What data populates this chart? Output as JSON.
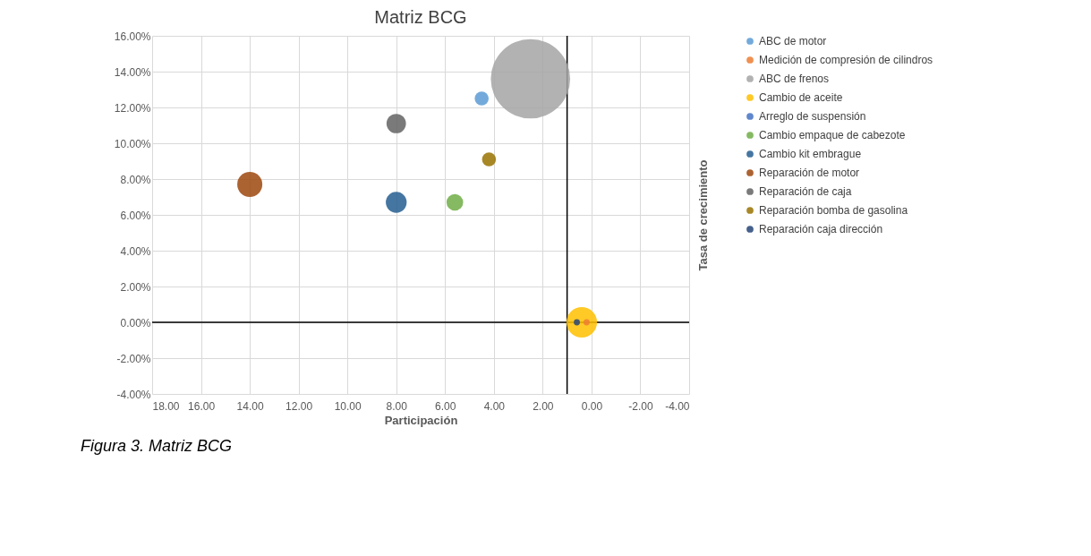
{
  "chart_data": {
    "type": "bubble",
    "title": "Matriz BCG",
    "xlabel": "Participación",
    "ylabel": "Tasa de crecimiento",
    "xlim": [
      18,
      -4
    ],
    "ylim": [
      -4,
      16
    ],
    "xticks": [
      {
        "value": 18,
        "label": "18.00"
      },
      {
        "value": 16,
        "label": "16.00"
      },
      {
        "value": 14,
        "label": "14.00"
      },
      {
        "value": 12,
        "label": "12.00"
      },
      {
        "value": 10,
        "label": "10.00"
      },
      {
        "value": 8,
        "label": "8.00"
      },
      {
        "value": 6,
        "label": "6.00"
      },
      {
        "value": 4,
        "label": "4.00"
      },
      {
        "value": 2,
        "label": "2.00"
      },
      {
        "value": 0,
        "label": "0.00"
      },
      {
        "value": -2,
        "label": "-2.00"
      },
      {
        "value": -4,
        "label": "-4.00"
      }
    ],
    "yticks": [
      {
        "value": -4,
        "label": "-4.00%"
      },
      {
        "value": -2,
        "label": "-2.00%"
      },
      {
        "value": 0,
        "label": "0.00%"
      },
      {
        "value": 2,
        "label": "2.00%"
      },
      {
        "value": 4,
        "label": "4.00%"
      },
      {
        "value": 6,
        "label": "6.00%"
      },
      {
        "value": 8,
        "label": "8.00%"
      },
      {
        "value": 10,
        "label": "10.00%"
      },
      {
        "value": 12,
        "label": "12.00%"
      },
      {
        "value": 14,
        "label": "14.00%"
      },
      {
        "value": 16,
        "label": "16.00%"
      }
    ],
    "grid": true,
    "legend": "right",
    "series": [
      {
        "name": "ABC de motor",
        "color": "#5b9bd5",
        "x": [
          4.5
        ],
        "values": [
          12.5
        ],
        "sizes": [
          0.031
        ]
      },
      {
        "name": "Medición de compresión de cilindros",
        "color": "#ed7d31",
        "x": [
          0.2
        ],
        "values": [
          0.0
        ],
        "sizes": [
          0.006
        ]
      },
      {
        "name": "ABC de frenos",
        "color": "#a5a5a5",
        "x": [
          2.5
        ],
        "values": [
          13.6
        ],
        "sizes": [
          1
        ]
      },
      {
        "name": "Cambio de aceite",
        "color": "#ffc000",
        "x": [
          0.4
        ],
        "values": [
          0.0
        ],
        "sizes": [
          0.149
        ]
      },
      {
        "name": "Arreglo de suspensión",
        "color": "#4472c4",
        "x": [
          null
        ],
        "values": [
          null
        ],
        "sizes": [
          null
        ]
      },
      {
        "name": "Cambio empaque de cabezote",
        "color": "#70ad47",
        "x": [
          5.6
        ],
        "values": [
          6.7
        ],
        "sizes": [
          0.044
        ]
      },
      {
        "name": "Cambio kit embrague",
        "color": "#255e91",
        "x": [
          8.0
        ],
        "values": [
          6.7
        ],
        "sizes": [
          0.069
        ]
      },
      {
        "name": "Reparación de motor",
        "color": "#9e480e",
        "x": [
          14.0
        ],
        "values": [
          7.7
        ],
        "sizes": [
          0.1
        ]
      },
      {
        "name": "Reparación de caja",
        "color": "#636363",
        "x": [
          8.0
        ],
        "values": [
          11.1
        ],
        "sizes": [
          0.06
        ]
      },
      {
        "name": "Reparación  bomba de gasolina",
        "color": "#997300",
        "x": [
          4.2
        ],
        "values": [
          9.1
        ],
        "sizes": [
          0.031
        ]
      },
      {
        "name": "Reparación caja dirección",
        "color": "#264478",
        "x": [
          0.6
        ],
        "values": [
          0.0
        ],
        "sizes": [
          0.006
        ]
      }
    ],
    "ref_lines": [
      {
        "axis": "x",
        "value": 1,
        "label": null,
        "color": "#000000"
      },
      {
        "axis": "y",
        "value": 0,
        "label": null,
        "color": "#000000"
      }
    ],
    "annotations": [
      "Figura 3. Matriz BCG"
    ]
  }
}
